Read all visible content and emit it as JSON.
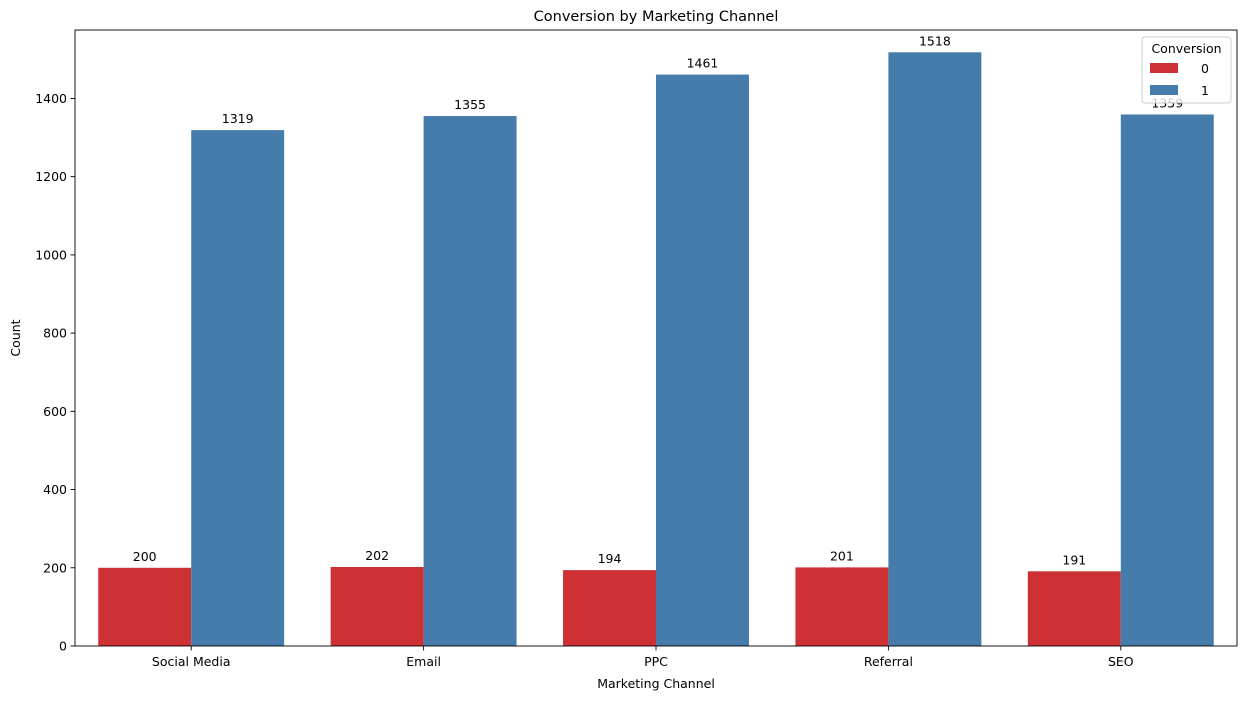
{
  "chart_data": {
    "type": "bar",
    "title": "Conversion by Marketing Channel",
    "xlabel": "Marketing Channel",
    "ylabel": "Count",
    "categories": [
      "Social Media",
      "Email",
      "PPC",
      "Referral",
      "SEO"
    ],
    "series": [
      {
        "name": "0",
        "color": "#cd3134",
        "values": [
          200,
          202,
          194,
          201,
          191
        ]
      },
      {
        "name": "1",
        "color": "#467cab",
        "values": [
          1319,
          1355,
          1461,
          1518,
          1359
        ]
      }
    ],
    "ylim": [
      0,
      1575
    ],
    "yticks": [
      0,
      200,
      400,
      600,
      800,
      1000,
      1200,
      1400
    ],
    "legend": {
      "title": "Conversion",
      "placement": "top-right"
    },
    "grid": false
  }
}
